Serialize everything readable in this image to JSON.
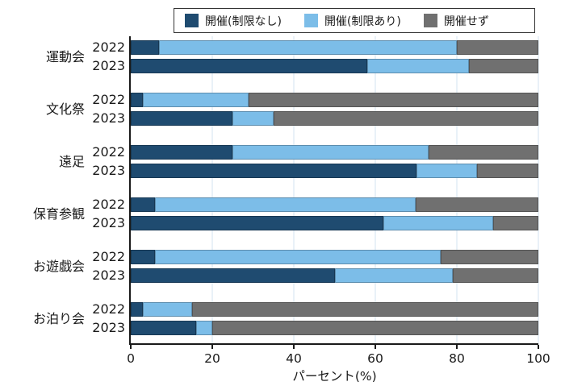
{
  "legend": {
    "items": [
      {
        "label": "開催(制限なし)",
        "color": "#1F4B70"
      },
      {
        "label": "開催(制限あり)",
        "color": "#7CBDE8"
      },
      {
        "label": "開催せず",
        "color": "#707070"
      }
    ]
  },
  "chart_data": {
    "type": "bar",
    "orientation": "horizontal",
    "stacked": true,
    "unit": "percent",
    "title": "",
    "xlabel": "パーセント(%)",
    "xlim": [
      0,
      100
    ],
    "x_ticks": [
      0,
      20,
      40,
      60,
      80,
      100
    ],
    "grid": "vertical-light",
    "legend_position": "top",
    "series_names": [
      "開催(制限なし)",
      "開催(制限あり)",
      "開催せず"
    ],
    "series_colors": [
      "#1F4B70",
      "#7CBDE8",
      "#707070"
    ],
    "categories": [
      "運動会",
      "文化祭",
      "遠足",
      "保育参観",
      "お遊戯会",
      "お泊り会"
    ],
    "years": [
      "2022",
      "2023"
    ],
    "groups": [
      {
        "category": "運動会",
        "bars": [
          {
            "year": "2022",
            "values": [
              7,
              73,
              20
            ]
          },
          {
            "year": "2023",
            "values": [
              58,
              25,
              17
            ]
          }
        ]
      },
      {
        "category": "文化祭",
        "bars": [
          {
            "year": "2022",
            "values": [
              3,
              26,
              71
            ]
          },
          {
            "year": "2023",
            "values": [
              25,
              10,
              65
            ]
          }
        ]
      },
      {
        "category": "遠足",
        "bars": [
          {
            "year": "2022",
            "values": [
              25,
              48,
              27
            ]
          },
          {
            "year": "2023",
            "values": [
              70,
              15,
              15
            ]
          }
        ]
      },
      {
        "category": "保育参観",
        "bars": [
          {
            "year": "2022",
            "values": [
              6,
              64,
              30
            ]
          },
          {
            "year": "2023",
            "values": [
              62,
              27,
              11
            ]
          }
        ]
      },
      {
        "category": "お遊戯会",
        "bars": [
          {
            "year": "2022",
            "values": [
              6,
              70,
              24
            ]
          },
          {
            "year": "2023",
            "values": [
              50,
              29,
              21
            ]
          }
        ]
      },
      {
        "category": "お泊り会",
        "bars": [
          {
            "year": "2022",
            "values": [
              3,
              12,
              85
            ]
          },
          {
            "year": "2023",
            "values": [
              16,
              4,
              80
            ]
          }
        ]
      }
    ],
    "colors": {
      "grid": "#E9F1F8",
      "axis": "#1a1a1a",
      "text": "#1a1a1a",
      "background": "#ffffff"
    }
  }
}
